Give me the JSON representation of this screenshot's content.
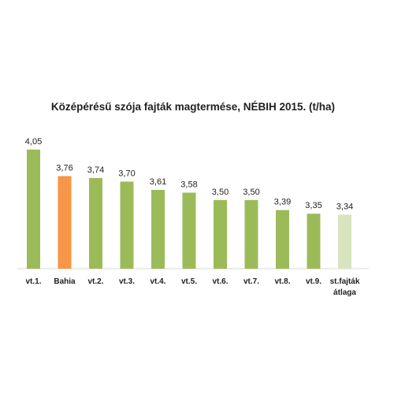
{
  "chart_data": {
    "type": "bar",
    "title": "Középérésű szója fajták magtermése, NÉBIH 2015. (t/ha)",
    "xlabel": "",
    "ylabel": "",
    "categories": [
      "vt.1.",
      "Bahia",
      "vt.2.",
      "vt.3.",
      "vt.4.",
      "vt.5.",
      "vt.6.",
      "vt.7.",
      "vt.8.",
      "vt.9.",
      "st.fajták átlaga"
    ],
    "category_lines": [
      [
        "vt.1."
      ],
      [
        "Bahia"
      ],
      [
        "vt.2."
      ],
      [
        "vt.3."
      ],
      [
        "vt.4."
      ],
      [
        "vt.5."
      ],
      [
        "vt.6."
      ],
      [
        "vt.7."
      ],
      [
        "vt.8."
      ],
      [
        "vt.9."
      ],
      [
        "st.fajták",
        "átlaga"
      ]
    ],
    "values": [
      4.05,
      3.76,
      3.74,
      3.7,
      3.61,
      3.58,
      3.5,
      3.5,
      3.39,
      3.35,
      3.34
    ],
    "value_labels": [
      "4,05",
      "3,76",
      "3,74",
      "3,70",
      "3,61",
      "3,58",
      "3,50",
      "3,50",
      "3,39",
      "3,35",
      "3,34"
    ],
    "colors": [
      "#9bbb59",
      "#f79646",
      "#9bbb59",
      "#9bbb59",
      "#9bbb59",
      "#9bbb59",
      "#9bbb59",
      "#9bbb59",
      "#9bbb59",
      "#9bbb59",
      "#d7e4bd"
    ],
    "ylim": [
      2.75,
      4.1
    ],
    "grid": false,
    "legend": "none",
    "axis_color": "#d9d9d9"
  }
}
